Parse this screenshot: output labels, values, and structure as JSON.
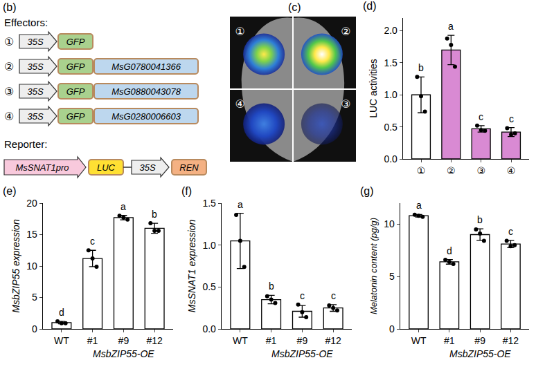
{
  "chart_data": [
    {
      "panel": "(d)",
      "type": "bar",
      "y_label": "LUC activities",
      "categories": [
        "①",
        "②",
        "③",
        "④"
      ],
      "values": [
        1.0,
        1.7,
        0.47,
        0.42
      ],
      "error": [
        0.28,
        0.23,
        0.05,
        0.07
      ],
      "points": [
        [
          1.28,
          0.98,
          0.74
        ],
        [
          1.88,
          1.78,
          1.44
        ],
        [
          0.52,
          0.45,
          0.44
        ],
        [
          0.48,
          0.38,
          0.4
        ]
      ],
      "letters": [
        "b",
        "a",
        "c",
        "c"
      ],
      "colors": [
        "#ffffff",
        "#d98ad3",
        "#d98ad3",
        "#d98ad3"
      ],
      "ylim": [
        0,
        2.2
      ],
      "yticks": [
        {
          "value": 0,
          "label": "0.0"
        },
        0.5,
        {
          "value": 1,
          "label": "1.0"
        },
        1.5,
        {
          "value": 2,
          "label": "2.0"
        }
      ],
      "grid": false
    },
    {
      "panel": "(e)",
      "type": "bar",
      "y_label": "MsbZIP55 expression",
      "categories": [
        "WT",
        "#1",
        "#9",
        "#12"
      ],
      "values": [
        1.0,
        11.2,
        17.7,
        16.0
      ],
      "error": [
        0.2,
        1.3,
        0.35,
        0.8
      ],
      "points": [
        [
          1.2,
          0.9,
          0.9
        ],
        [
          12.5,
          11.2,
          9.9
        ],
        [
          18.0,
          17.7,
          17.4
        ],
        [
          16.8,
          15.6,
          15.6
        ]
      ],
      "letters": [
        "d",
        "c",
        "a",
        "b"
      ],
      "colors": [
        "#ffffff",
        "#ffffff",
        "#ffffff",
        "#ffffff"
      ],
      "group_label": {
        "text": "MsbZIP55-OE",
        "categories": [
          "#1",
          "#9",
          "#12"
        ]
      },
      "ylim": [
        0,
        20
      ],
      "yticks": [
        0,
        5,
        10,
        15,
        20
      ],
      "grid": false
    },
    {
      "panel": "(f)",
      "type": "bar",
      "y_label": "MsSNAT1 expression",
      "categories": [
        "WT",
        "#1",
        "#9",
        "#12"
      ],
      "values": [
        1.05,
        0.35,
        0.21,
        0.25
      ],
      "error": [
        0.33,
        0.05,
        0.07,
        0.04
      ],
      "points": [
        [
          1.36,
          1.05,
          0.74
        ],
        [
          0.39,
          0.35,
          0.31
        ],
        [
          0.29,
          0.2,
          0.14
        ],
        [
          0.28,
          0.25,
          0.22
        ]
      ],
      "letters": [
        "a",
        "b",
        "c",
        "c"
      ],
      "colors": [
        "#ffffff",
        "#ffffff",
        "#ffffff",
        "#ffffff"
      ],
      "group_label": {
        "text": "MsbZIP55-OE",
        "categories": [
          "#1",
          "#9",
          "#12"
        ]
      },
      "ylim": [
        0,
        1.5
      ],
      "yticks": [
        {
          "value": 0,
          "label": "0.0"
        },
        0.5,
        {
          "value": 1,
          "label": "1.0"
        },
        1.5
      ],
      "grid": false
    },
    {
      "panel": "(g)",
      "type": "bar",
      "y_label": "Melatonin content (pg/g)",
      "categories": [
        "WT",
        "#1",
        "#9",
        "#12"
      ],
      "values": [
        10.8,
        6.4,
        9.0,
        8.1
      ],
      "error": [
        0.12,
        0.22,
        0.55,
        0.35
      ],
      "points": [
        [
          10.9,
          10.8,
          10.7
        ],
        [
          6.6,
          6.4,
          6.2
        ],
        [
          9.5,
          9.1,
          8.4
        ],
        [
          8.4,
          7.9,
          8.0
        ]
      ],
      "letters": [
        "a",
        "d",
        "b",
        "c"
      ],
      "colors": [
        "#ffffff",
        "#ffffff",
        "#ffffff",
        "#ffffff"
      ],
      "group_label": {
        "text": "MsbZIP55-OE",
        "categories": [
          "#1",
          "#9",
          "#12"
        ]
      },
      "ylim": [
        0,
        12
      ],
      "yticks": [
        0,
        5,
        10
      ],
      "grid": false
    }
  ],
  "diagram": {
    "panel": "(b)",
    "effectors_label": "Effectors:",
    "effectors": [
      {
        "number": "①",
        "promoter": "35S",
        "tag": "GFP"
      },
      {
        "number": "②",
        "promoter": "35S",
        "tag": "GFP",
        "gene": "MsG0780041366"
      },
      {
        "number": "③",
        "promoter": "35S",
        "tag": "GFP",
        "gene": "MsG0880043078"
      },
      {
        "number": "④",
        "promoter": "35S",
        "tag": "GFP",
        "gene": "MsG0280006603"
      }
    ],
    "reporter_label": "Reporter:",
    "reporter": {
      "promoter": "MsSNAT1pro",
      "gene": "LUC",
      "control_promoter": "35S",
      "control_gene": "REN"
    }
  },
  "image": {
    "panel": "(c)",
    "quadrant_labels": [
      "①",
      "②",
      "④",
      "③"
    ]
  }
}
